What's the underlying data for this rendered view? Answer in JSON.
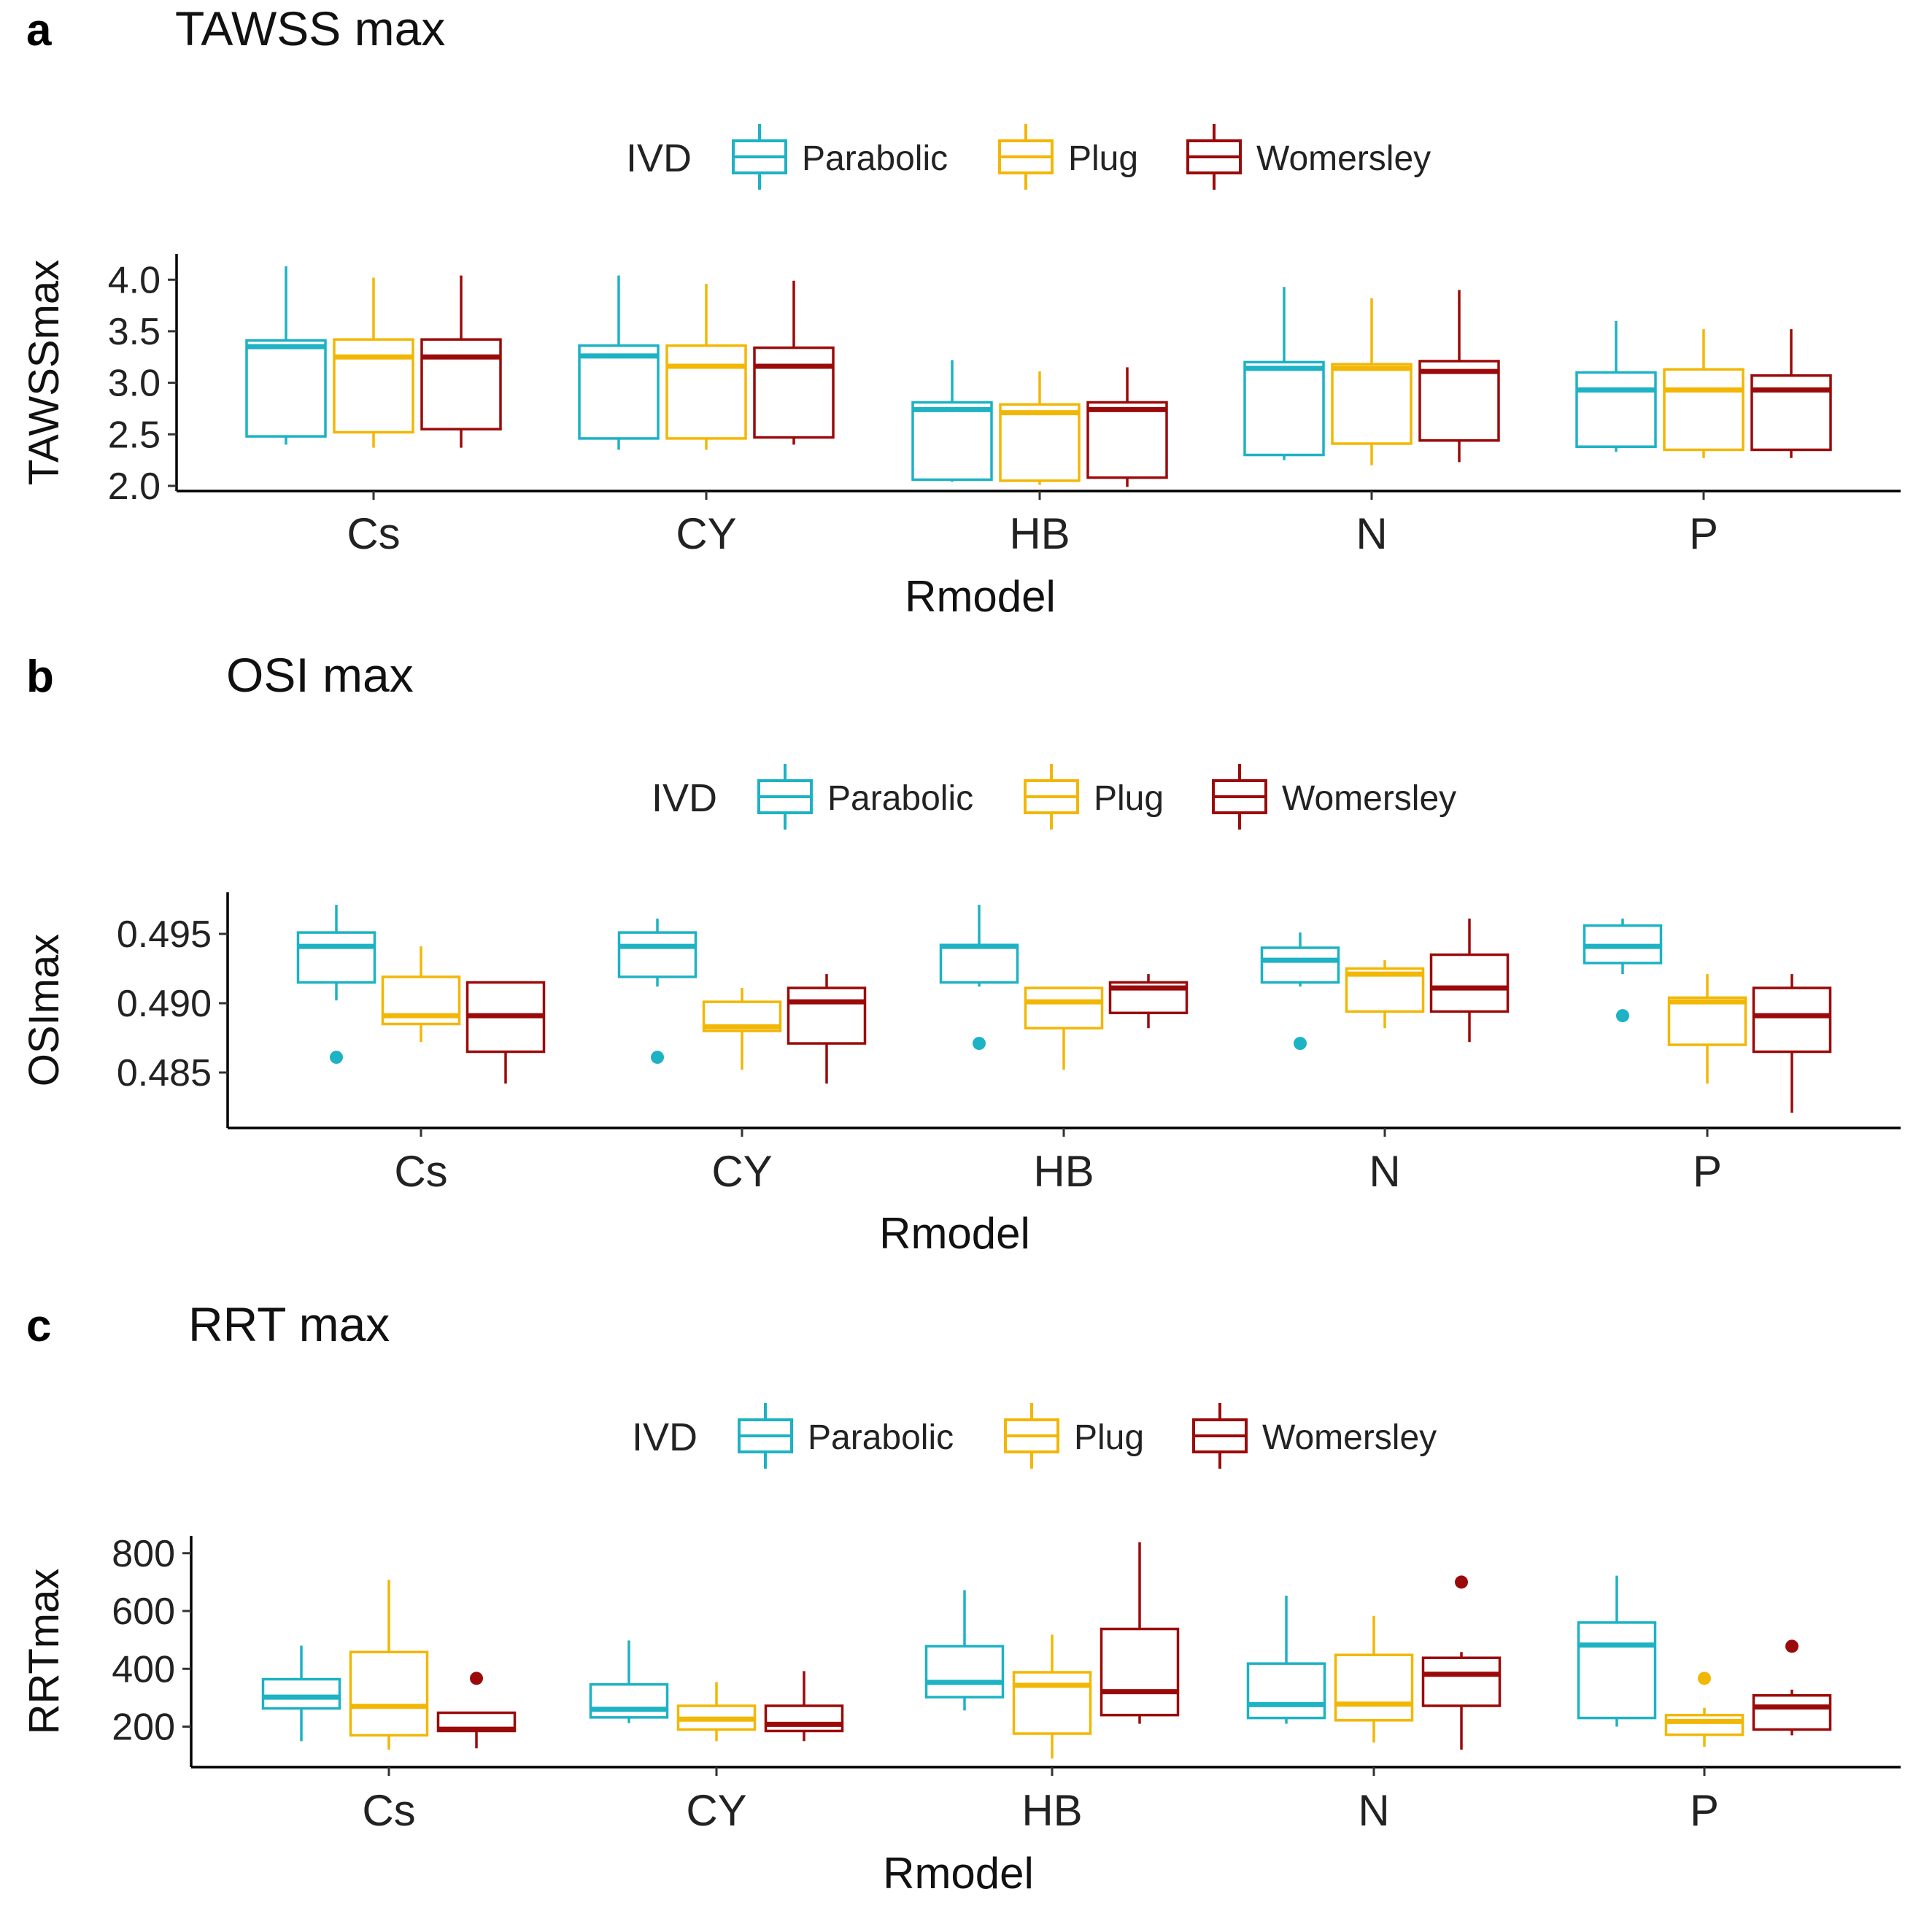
{
  "chart_data": [
    {
      "type": "boxplot",
      "panel_letter": "a",
      "title": "TAWSS max",
      "xlabel": "Rmodel",
      "ylabel": "TAWSSmax",
      "ylim": [
        1.95,
        4.25
      ],
      "yticks": [
        "2.0",
        "2.5",
        "3.0",
        "3.5",
        "4.0"
      ],
      "categories": [
        "Cs",
        "CY",
        "HB",
        "N",
        "P"
      ],
      "legend": {
        "title": "IVD",
        "position": "top",
        "entries": [
          "Parabolic",
          "Plug",
          "Womersley"
        ]
      },
      "series": [
        {
          "name": "Parabolic",
          "color": "#1DB2C4",
          "boxes": [
            {
              "min": 2.4,
              "q1": 2.48,
              "median": 3.35,
              "q3": 3.41,
              "max": 4.13,
              "outliers": []
            },
            {
              "min": 2.35,
              "q1": 2.46,
              "median": 3.26,
              "q3": 3.36,
              "max": 4.04,
              "outliers": []
            },
            {
              "min": 2.04,
              "q1": 2.06,
              "median": 2.74,
              "q3": 2.81,
              "max": 3.22,
              "outliers": []
            },
            {
              "min": 2.25,
              "q1": 2.3,
              "median": 3.14,
              "q3": 3.2,
              "max": 3.93,
              "outliers": []
            },
            {
              "min": 2.33,
              "q1": 2.38,
              "median": 2.93,
              "q3": 3.1,
              "max": 3.6,
              "outliers": []
            }
          ]
        },
        {
          "name": "Plug",
          "color": "#F2B705",
          "boxes": [
            {
              "min": 2.37,
              "q1": 2.52,
              "median": 3.25,
              "q3": 3.42,
              "max": 4.02,
              "outliers": []
            },
            {
              "min": 2.35,
              "q1": 2.46,
              "median": 3.16,
              "q3": 3.36,
              "max": 3.96,
              "outliers": []
            },
            {
              "min": 2.01,
              "q1": 2.05,
              "median": 2.71,
              "q3": 2.79,
              "max": 3.11,
              "outliers": []
            },
            {
              "min": 2.2,
              "q1": 2.41,
              "median": 3.14,
              "q3": 3.18,
              "max": 3.82,
              "outliers": []
            },
            {
              "min": 2.27,
              "q1": 2.35,
              "median": 2.93,
              "q3": 3.13,
              "max": 3.52,
              "outliers": []
            }
          ]
        },
        {
          "name": "Womersley",
          "color": "#9B0A0A",
          "boxes": [
            {
              "min": 2.37,
              "q1": 2.55,
              "median": 3.25,
              "q3": 3.42,
              "max": 4.04,
              "outliers": []
            },
            {
              "min": 2.4,
              "q1": 2.47,
              "median": 3.16,
              "q3": 3.34,
              "max": 3.99,
              "outliers": []
            },
            {
              "min": 1.99,
              "q1": 2.08,
              "median": 2.74,
              "q3": 2.81,
              "max": 3.15,
              "outliers": []
            },
            {
              "min": 2.23,
              "q1": 2.44,
              "median": 3.11,
              "q3": 3.21,
              "max": 3.9,
              "outliers": []
            },
            {
              "min": 2.27,
              "q1": 2.35,
              "median": 2.93,
              "q3": 3.07,
              "max": 3.52,
              "outliers": []
            }
          ]
        }
      ]
    },
    {
      "type": "boxplot",
      "panel_letter": "b",
      "title": "OSI max",
      "xlabel": "Rmodel",
      "ylabel": "OSImax",
      "ylim": [
        0.481,
        0.498
      ],
      "yticks": [
        "0.485",
        "0.490",
        "0.495"
      ],
      "categories": [
        "Cs",
        "CY",
        "HB",
        "N",
        "P"
      ],
      "legend": {
        "title": "IVD",
        "position": "top",
        "entries": [
          "Parabolic",
          "Plug",
          "Womersley"
        ]
      },
      "series": [
        {
          "name": "Parabolic",
          "color": "#1DB2C4",
          "boxes": [
            {
              "min": 0.4902,
              "q1": 0.4915,
              "median": 0.4941,
              "q3": 0.4951,
              "max": 0.4971,
              "outliers": [
                0.4861
              ]
            },
            {
              "min": 0.4912,
              "q1": 0.4919,
              "median": 0.4941,
              "q3": 0.4951,
              "max": 0.4961,
              "outliers": [
                0.4861
              ]
            },
            {
              "min": 0.4912,
              "q1": 0.4915,
              "median": 0.4941,
              "q3": 0.4942,
              "max": 0.4971,
              "outliers": [
                0.4871
              ]
            },
            {
              "min": 0.4912,
              "q1": 0.4915,
              "median": 0.4931,
              "q3": 0.494,
              "max": 0.4951,
              "outliers": [
                0.4871
              ]
            },
            {
              "min": 0.4921,
              "q1": 0.4929,
              "median": 0.4941,
              "q3": 0.4956,
              "max": 0.4961,
              "outliers": [
                0.4891
              ]
            }
          ]
        },
        {
          "name": "Plug",
          "color": "#F2B705",
          "boxes": [
            {
              "min": 0.4872,
              "q1": 0.4885,
              "median": 0.4891,
              "q3": 0.4919,
              "max": 0.4941,
              "outliers": []
            },
            {
              "min": 0.4852,
              "q1": 0.488,
              "median": 0.4883,
              "q3": 0.4901,
              "max": 0.4911,
              "outliers": []
            },
            {
              "min": 0.4852,
              "q1": 0.4882,
              "median": 0.4901,
              "q3": 0.4911,
              "max": 0.4911,
              "outliers": []
            },
            {
              "min": 0.4882,
              "q1": 0.4894,
              "median": 0.4921,
              "q3": 0.4925,
              "max": 0.4931,
              "outliers": []
            },
            {
              "min": 0.4842,
              "q1": 0.487,
              "median": 0.4901,
              "q3": 0.4904,
              "max": 0.4921,
              "outliers": []
            }
          ]
        },
        {
          "name": "Womersley",
          "color": "#9B0A0A",
          "boxes": [
            {
              "min": 0.4842,
              "q1": 0.4865,
              "median": 0.4891,
              "q3": 0.4915,
              "max": 0.4915,
              "outliers": []
            },
            {
              "min": 0.4842,
              "q1": 0.4871,
              "median": 0.4901,
              "q3": 0.4911,
              "max": 0.4921,
              "outliers": []
            },
            {
              "min": 0.4882,
              "q1": 0.4893,
              "median": 0.4911,
              "q3": 0.4915,
              "max": 0.4921,
              "outliers": []
            },
            {
              "min": 0.4872,
              "q1": 0.4894,
              "median": 0.4911,
              "q3": 0.4935,
              "max": 0.4961,
              "outliers": []
            },
            {
              "min": 0.4821,
              "q1": 0.4865,
              "median": 0.4891,
              "q3": 0.4911,
              "max": 0.4921,
              "outliers": []
            }
          ]
        }
      ]
    },
    {
      "type": "boxplot",
      "panel_letter": "c",
      "title": "RRT max",
      "xlabel": "Rmodel",
      "ylabel": "RRTmax",
      "ylim": [
        60,
        860
      ],
      "yticks": [
        "200",
        "400",
        "600",
        "800"
      ],
      "categories": [
        "Cs",
        "CY",
        "HB",
        "N",
        "P"
      ],
      "legend": {
        "title": "IVD",
        "position": "top",
        "entries": [
          "Parabolic",
          "Plug",
          "Womersley"
        ]
      },
      "series": [
        {
          "name": "Parabolic",
          "color": "#1DB2C4",
          "boxes": [
            {
              "min": 150,
              "q1": 263,
              "median": 302,
              "q3": 364,
              "max": 480,
              "outliers": []
            },
            {
              "min": 212,
              "q1": 232,
              "median": 260,
              "q3": 346,
              "max": 498,
              "outliers": []
            },
            {
              "min": 256,
              "q1": 302,
              "median": 353,
              "q3": 478,
              "max": 672,
              "outliers": []
            },
            {
              "min": 210,
              "q1": 230,
              "median": 276,
              "q3": 418,
              "max": 653,
              "outliers": []
            },
            {
              "min": 200,
              "q1": 230,
              "median": 482,
              "q3": 560,
              "max": 722,
              "outliers": []
            }
          ]
        },
        {
          "name": "Plug",
          "color": "#F2B705",
          "boxes": [
            {
              "min": 120,
              "q1": 170,
              "median": 270,
              "q3": 458,
              "max": 708,
              "outliers": []
            },
            {
              "min": 150,
              "q1": 190,
              "median": 226,
              "q3": 272,
              "max": 354,
              "outliers": []
            },
            {
              "min": 90,
              "q1": 176,
              "median": 343,
              "q3": 388,
              "max": 518,
              "outliers": []
            },
            {
              "min": 145,
              "q1": 222,
              "median": 278,
              "q3": 448,
              "max": 583,
              "outliers": []
            },
            {
              "min": 130,
              "q1": 172,
              "median": 218,
              "q3": 240,
              "max": 265,
              "outliers": [
                367
              ]
            }
          ]
        },
        {
          "name": "Womersley",
          "color": "#9B0A0A",
          "boxes": [
            {
              "min": 125,
              "q1": 185,
              "median": 191,
              "q3": 248,
              "max": 248,
              "outliers": [
                367
              ]
            },
            {
              "min": 150,
              "q1": 185,
              "median": 208,
              "q3": 272,
              "max": 392,
              "outliers": []
            },
            {
              "min": 210,
              "q1": 240,
              "median": 321,
              "q3": 538,
              "max": 838,
              "outliers": []
            },
            {
              "min": 120,
              "q1": 272,
              "median": 381,
              "q3": 438,
              "max": 458,
              "outliers": [
                700
              ]
            },
            {
              "min": 170,
              "q1": 190,
              "median": 268,
              "q3": 308,
              "max": 328,
              "outliers": [
                478
              ]
            }
          ]
        }
      ]
    }
  ]
}
